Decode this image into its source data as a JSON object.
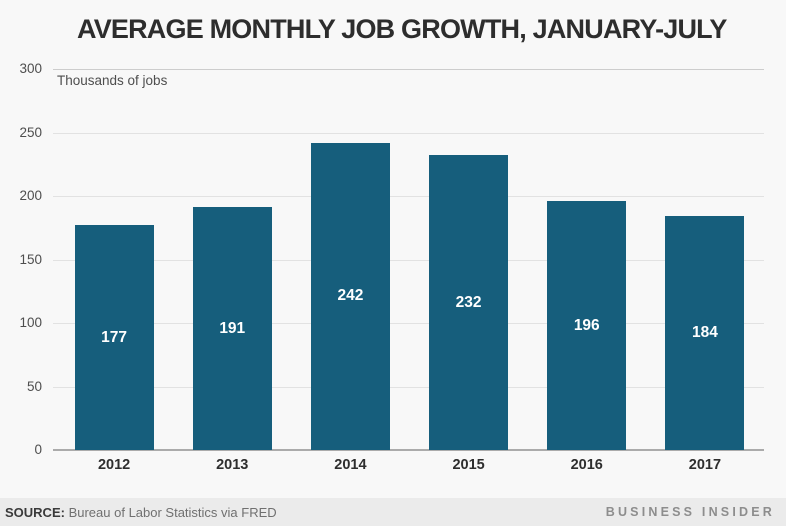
{
  "chart_data": {
    "type": "bar",
    "title": "AVERAGE MONTHLY JOB GROWTH, JANUARY-JULY",
    "unit_label": "Thousands of jobs",
    "categories": [
      "2012",
      "2013",
      "2014",
      "2015",
      "2016",
      "2017"
    ],
    "values": [
      177,
      191,
      242,
      232,
      196,
      184
    ],
    "yticks": [
      0,
      50,
      100,
      150,
      200,
      250,
      300
    ],
    "ylim": [
      0,
      300
    ],
    "xlabel": "",
    "ylabel": "",
    "grid": true,
    "legend": false,
    "bar_color": "#165e7c",
    "value_label_color": "#ffffff"
  },
  "footer": {
    "source_label": "SOURCE:",
    "source_text": "Bureau of Labor Statistics via FRED",
    "brand": "BUSINESS INSIDER"
  }
}
